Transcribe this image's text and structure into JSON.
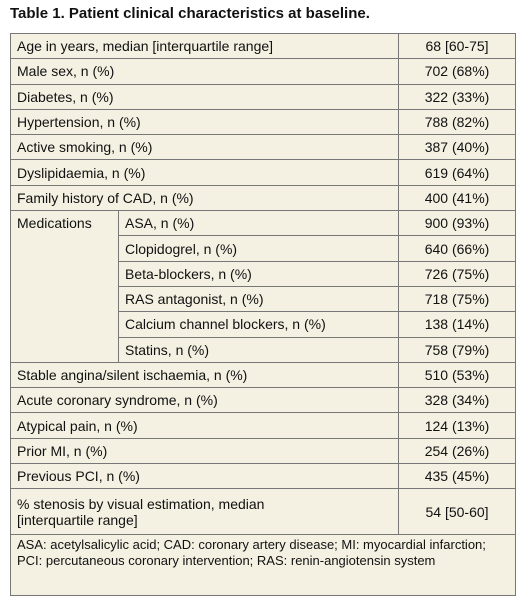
{
  "title": "Table 1. Patient clinical characteristics at baseline.",
  "table": {
    "rows": [
      [
        "Age in years, median [interquartile range]",
        "68 [60-75]"
      ],
      [
        "Male sex, n (%)",
        "702 (68%)"
      ],
      [
        "Diabetes, n (%)",
        "322 (33%)"
      ],
      [
        "Hypertension, n (%)",
        "788 (82%)"
      ],
      [
        "Active smoking, n (%)",
        "387 (40%)"
      ],
      [
        "Dyslipidaemia, n (%)",
        "619 (64%)"
      ],
      [
        "Family history of CAD, n (%)",
        "400 (41%)"
      ]
    ],
    "medications": {
      "label": "Medications",
      "rows": [
        [
          "ASA, n (%)",
          "900 (93%)"
        ],
        [
          "Clopidogrel, n (%)",
          "640 (66%)"
        ],
        [
          "Beta-blockers, n (%)",
          "726 (75%)"
        ],
        [
          "RAS antagonist, n (%)",
          "718 (75%)"
        ],
        [
          "Calcium channel blockers, n (%)",
          "138 (14%)"
        ],
        [
          "Statins, n (%)",
          "758 (79%)"
        ]
      ]
    },
    "rows_after": [
      [
        "Stable angina/silent ischaemia, n (%)",
        "510 (53%)"
      ],
      [
        "Acute coronary syndrome, n (%)",
        "328 (34%)"
      ],
      [
        "Atypical pain, n (%)",
        "124 (13%)"
      ],
      [
        "Prior MI, n (%)",
        "254 (26%)"
      ],
      [
        "Previous PCI, n (%)",
        "435 (45%)"
      ]
    ],
    "last_row": {
      "label_lines": [
        "% stenosis by visual estimation, median",
        "[interquartile range]"
      ],
      "value": "54 [50-60]"
    },
    "footnote": "ASA: acetylsalicylic acid; CAD: coronary artery disease; MI: myocardial infarction; PCI: percutaneous coronary intervention; RAS: renin-angiotensin system"
  }
}
